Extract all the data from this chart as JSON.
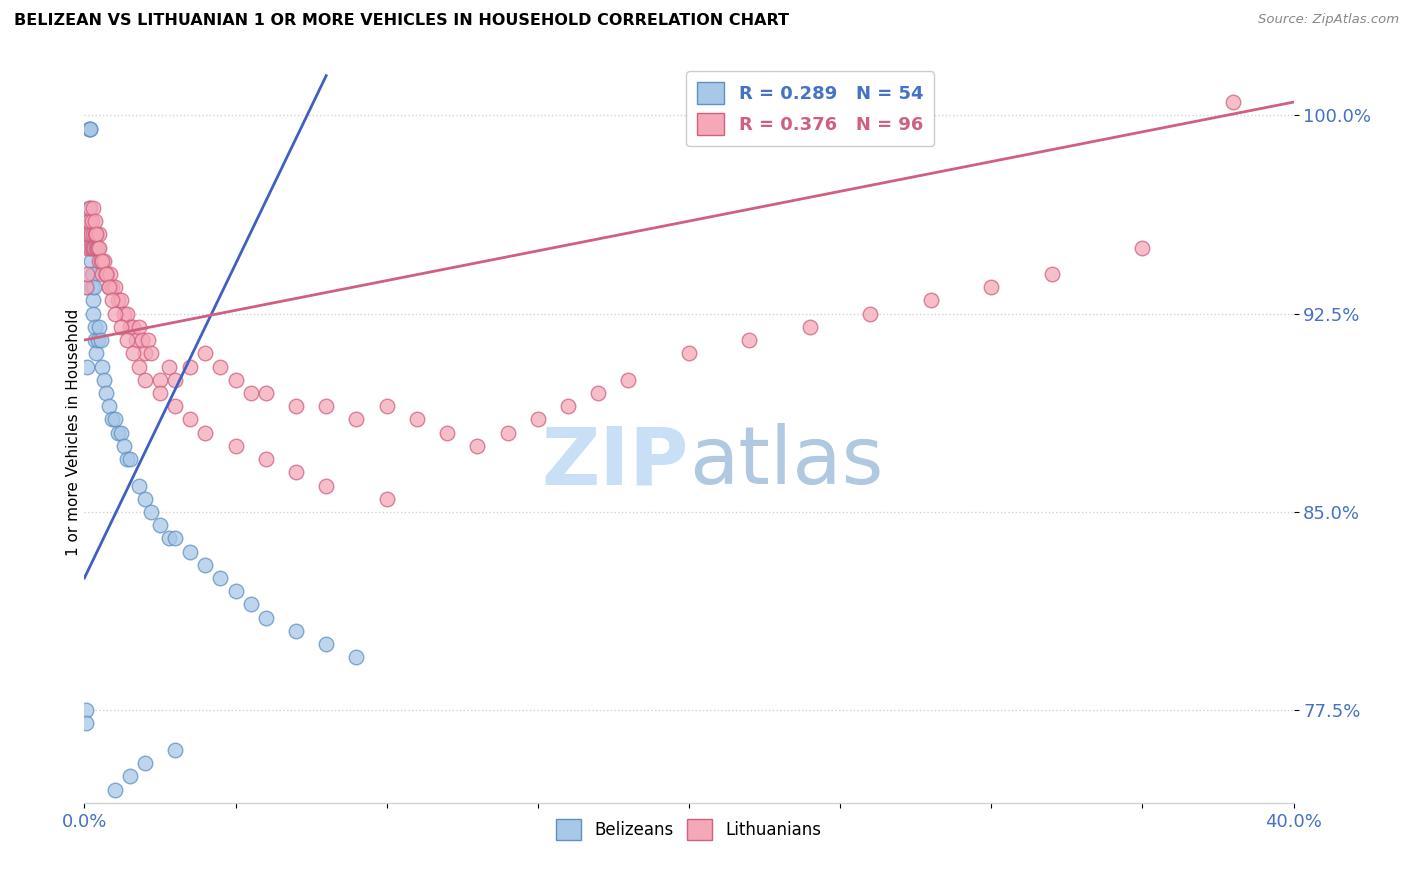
{
  "title": "BELIZEAN VS LITHUANIAN 1 OR MORE VEHICLES IN HOUSEHOLD CORRELATION CHART",
  "source": "Source: ZipAtlas.com",
  "ylabel": "1 or more Vehicles in Household",
  "xlim": [
    0.0,
    40.0
  ],
  "ylim": [
    74.0,
    102.0
  ],
  "yticks": [
    77.5,
    85.0,
    92.5,
    100.0
  ],
  "ytick_labels": [
    "77.5%",
    "85.0%",
    "92.5%",
    "100.0%"
  ],
  "belizean_color": "#a8c8e8",
  "lithuanian_color": "#f4a8b8",
  "belizean_edge": "#6090c0",
  "lithuanian_edge": "#d06080",
  "trend_blue": "#4060c0",
  "trend_pink": "#d06080",
  "watermark_color": "#ddeeff",
  "bel_x": [
    0.05,
    0.05,
    0.08,
    0.1,
    0.1,
    0.12,
    0.15,
    0.15,
    0.18,
    0.2,
    0.2,
    0.22,
    0.25,
    0.25,
    0.28,
    0.3,
    0.3,
    0.32,
    0.35,
    0.35,
    0.4,
    0.45,
    0.5,
    0.55,
    0.6,
    0.65,
    0.7,
    0.8,
    0.9,
    1.0,
    1.1,
    1.2,
    1.3,
    1.4,
    1.5,
    1.8,
    2.0,
    2.2,
    2.5,
    2.8,
    3.0,
    3.5,
    4.0,
    4.5,
    5.0,
    5.5,
    6.0,
    7.0,
    8.0,
    9.0,
    1.0,
    1.5,
    2.0,
    3.0
  ],
  "bel_y": [
    77.5,
    77.0,
    90.5,
    93.5,
    95.5,
    96.0,
    96.5,
    99.5,
    99.5,
    99.5,
    95.0,
    94.5,
    93.5,
    94.0,
    93.0,
    92.5,
    94.0,
    93.5,
    92.0,
    91.5,
    91.0,
    91.5,
    92.0,
    91.5,
    90.5,
    90.0,
    89.5,
    89.0,
    88.5,
    88.5,
    88.0,
    88.0,
    87.5,
    87.0,
    87.0,
    86.0,
    85.5,
    85.0,
    84.5,
    84.0,
    84.0,
    83.5,
    83.0,
    82.5,
    82.0,
    81.5,
    81.0,
    80.5,
    80.0,
    79.5,
    74.5,
    75.0,
    75.5,
    76.0
  ],
  "lit_x": [
    0.05,
    0.08,
    0.1,
    0.12,
    0.15,
    0.18,
    0.2,
    0.22,
    0.25,
    0.28,
    0.3,
    0.32,
    0.35,
    0.38,
    0.4,
    0.42,
    0.45,
    0.48,
    0.5,
    0.55,
    0.6,
    0.65,
    0.7,
    0.75,
    0.8,
    0.85,
    0.9,
    1.0,
    1.1,
    1.2,
    1.3,
    1.4,
    1.5,
    1.6,
    1.7,
    1.8,
    1.9,
    2.0,
    2.1,
    2.2,
    2.5,
    2.8,
    3.0,
    3.5,
    4.0,
    4.5,
    5.0,
    5.5,
    6.0,
    7.0,
    8.0,
    9.0,
    10.0,
    11.0,
    12.0,
    13.0,
    14.0,
    15.0,
    16.0,
    17.0,
    18.0,
    20.0,
    22.0,
    24.0,
    26.0,
    28.0,
    30.0,
    32.0,
    35.0,
    38.0,
    0.15,
    0.2,
    0.25,
    0.3,
    0.35,
    0.4,
    0.5,
    0.6,
    0.7,
    0.8,
    0.9,
    1.0,
    1.2,
    1.4,
    1.6,
    1.8,
    2.0,
    2.5,
    3.0,
    3.5,
    4.0,
    5.0,
    6.0,
    7.0,
    8.0,
    10.0
  ],
  "lit_y": [
    93.5,
    94.0,
    95.0,
    95.5,
    95.5,
    96.0,
    95.0,
    95.5,
    95.0,
    95.5,
    95.0,
    95.0,
    95.5,
    95.0,
    95.5,
    95.0,
    95.0,
    95.5,
    94.5,
    94.5,
    94.0,
    94.5,
    94.0,
    94.0,
    93.5,
    94.0,
    93.5,
    93.5,
    93.0,
    93.0,
    92.5,
    92.5,
    92.0,
    92.0,
    91.5,
    92.0,
    91.5,
    91.0,
    91.5,
    91.0,
    90.0,
    90.5,
    90.0,
    90.5,
    91.0,
    90.5,
    90.0,
    89.5,
    89.5,
    89.0,
    89.0,
    88.5,
    89.0,
    88.5,
    88.0,
    87.5,
    88.0,
    88.5,
    89.0,
    89.5,
    90.0,
    91.0,
    91.5,
    92.0,
    92.5,
    93.0,
    93.5,
    94.0,
    95.0,
    100.5,
    96.0,
    96.5,
    96.0,
    96.5,
    96.0,
    95.5,
    95.0,
    94.5,
    94.0,
    93.5,
    93.0,
    92.5,
    92.0,
    91.5,
    91.0,
    90.5,
    90.0,
    89.5,
    89.0,
    88.5,
    88.0,
    87.5,
    87.0,
    86.5,
    86.0,
    85.5
  ]
}
